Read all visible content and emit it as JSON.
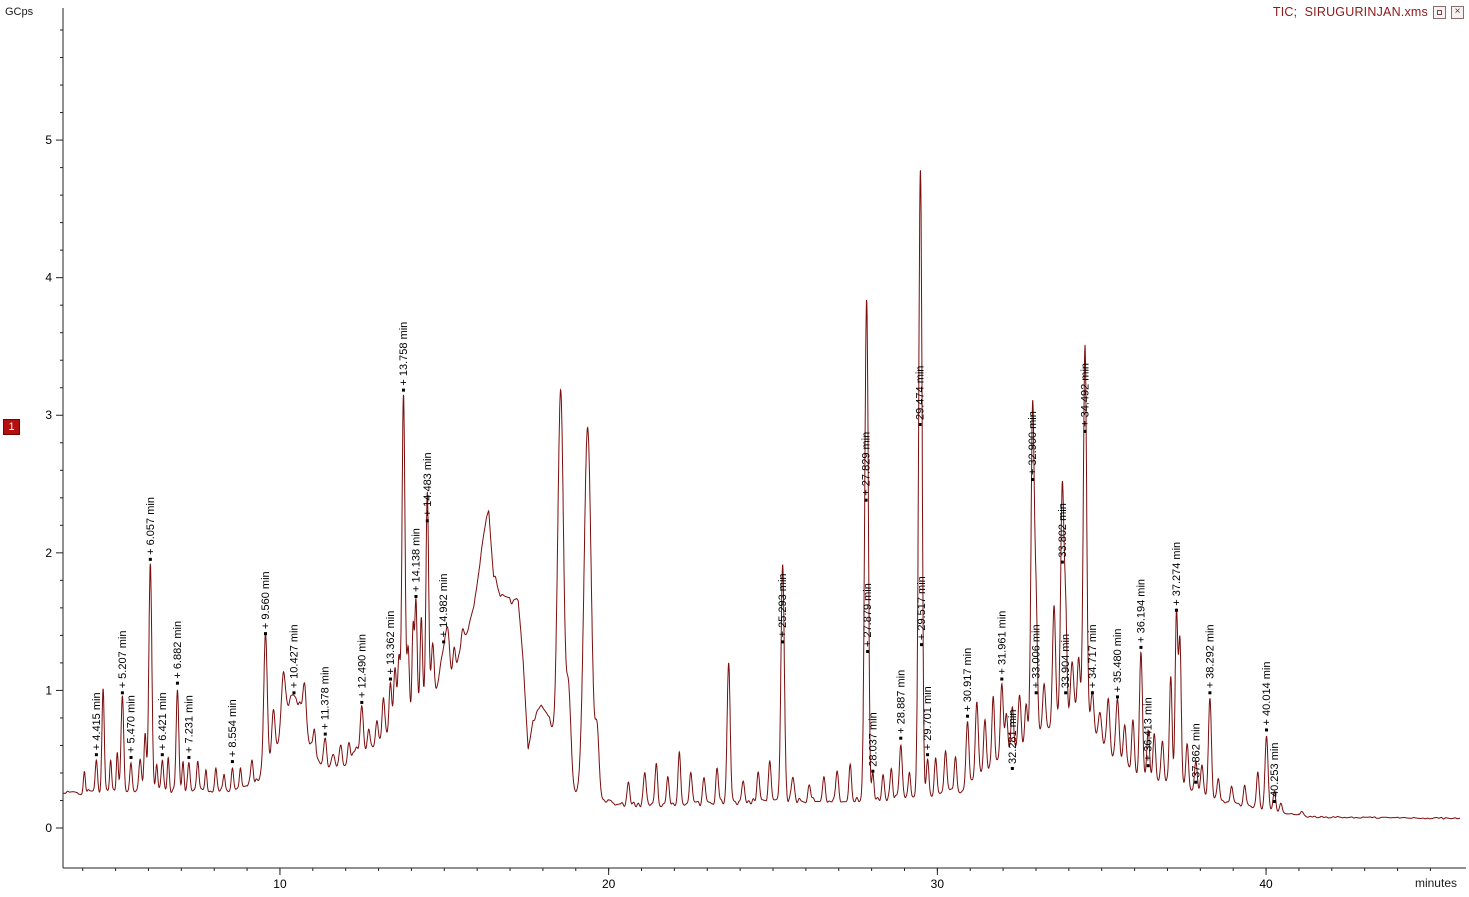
{
  "window": {
    "title": "TIC;  SIRUGURINJAN.xms",
    "badge": "1",
    "close_glyph": "×"
  },
  "chart_data": {
    "type": "line",
    "title": "TIC;  SIRUGURINJAN.xms",
    "xlabel": "minutes",
    "ylabel": "GCps",
    "xlim": [
      3.4,
      45.9
    ],
    "ylim": [
      0,
      5.96
    ],
    "x_major_ticks": [
      10,
      20,
      30,
      40
    ],
    "y_major_ticks": [
      0,
      1,
      2,
      3,
      4,
      5
    ],
    "grid": false,
    "line_color": "#7a0d0d",
    "labeled_peaks": [
      {
        "rt": 4.415,
        "h": 0.5,
        "s": 0.035,
        "label": "+ 4.415 min"
      },
      {
        "rt": 5.207,
        "h": 0.95,
        "s": 0.04,
        "label": "+ 5.207 min"
      },
      {
        "rt": 5.47,
        "h": 0.48,
        "s": 0.035,
        "label": "+ 5.470 min"
      },
      {
        "rt": 6.057,
        "h": 1.92,
        "s": 0.045,
        "label": "+ 6.057 min"
      },
      {
        "rt": 6.421,
        "h": 0.5,
        "s": 0.035,
        "label": "+ 6.421 min"
      },
      {
        "rt": 6.882,
        "h": 1.02,
        "s": 0.04,
        "label": "+ 6.882 min"
      },
      {
        "rt": 7.231,
        "h": 0.48,
        "s": 0.035,
        "label": "+ 7.231 min"
      },
      {
        "rt": 8.554,
        "h": 0.45,
        "s": 0.035,
        "label": "+ 8.554 min"
      },
      {
        "rt": 9.56,
        "h": 1.38,
        "s": 0.055,
        "label": "+ 9.560 min"
      },
      {
        "rt": 10.427,
        "h": 0.95,
        "s": 0.35,
        "label": "+ 10.427 min"
      },
      {
        "rt": 11.378,
        "h": 0.65,
        "s": 0.045,
        "label": "+ 11.378 min"
      },
      {
        "rt": 12.49,
        "h": 0.88,
        "s": 0.045,
        "label": "+ 12.490 min"
      },
      {
        "rt": 13.362,
        "h": 1.05,
        "s": 0.04,
        "label": "+ 13.362 min"
      },
      {
        "rt": 13.758,
        "h": 3.15,
        "s": 0.045,
        "label": "+ 13.758 min"
      },
      {
        "rt": 14.138,
        "h": 1.65,
        "s": 0.035,
        "label": "+ 14.138 min"
      },
      {
        "rt": 14.483,
        "h": 2.45,
        "s": 0.04,
        "label": "+ 14.483 min",
        "la": 2.2
      },
      {
        "rt": 14.982,
        "h": 1.32,
        "s": 0.1,
        "label": "+ 14.982 min"
      },
      {
        "rt": 25.293,
        "h": 1.9,
        "s": 0.05,
        "label": "+ 25.293 min",
        "la": 1.32
      },
      {
        "rt": 27.829,
        "h": 3.0,
        "s": 0.05,
        "label": "+ 27.829 min",
        "la": 2.35
      },
      {
        "rt": 27.879,
        "h": 1.6,
        "s": 0.04,
        "label": "+ 27.879 min",
        "la": 1.25
      },
      {
        "rt": 28.037,
        "h": 0.38,
        "s": 0.035,
        "label": "28.037 min"
      },
      {
        "rt": 28.887,
        "h": 0.62,
        "s": 0.04,
        "label": "+ 28.887 min"
      },
      {
        "rt": 29.474,
        "h": 4.1,
        "s": 0.05,
        "label": "29.474 min",
        "la": 2.9
      },
      {
        "rt": 29.517,
        "h": 1.3,
        "s": 0.04,
        "label": "+ 29.517 min"
      },
      {
        "rt": 29.701,
        "h": 0.5,
        "s": 0.04,
        "label": "+ 29.701 min"
      },
      {
        "rt": 30.917,
        "h": 0.78,
        "s": 0.045,
        "label": "+ 30.917 min"
      },
      {
        "rt": 31.961,
        "h": 1.05,
        "s": 0.045,
        "label": "+ 31.961 min"
      },
      {
        "rt": 32.281,
        "h": 0.88,
        "s": 0.04,
        "label": "32.281 min",
        "la": 0.4
      },
      {
        "rt": 32.9,
        "h": 3.1,
        "s": 0.05,
        "label": "+ 32.900 min",
        "la": 2.5
      },
      {
        "rt": 33.006,
        "h": 1.5,
        "s": 0.04,
        "label": "+ 33.006 min",
        "la": 0.95
      },
      {
        "rt": 33.802,
        "h": 2.5,
        "s": 0.05,
        "label": "33.802 min",
        "la": 1.9
      },
      {
        "rt": 33.904,
        "h": 1.5,
        "s": 0.04,
        "label": "33.904 min",
        "la": 0.95
      },
      {
        "rt": 34.492,
        "h": 3.5,
        "s": 0.05,
        "label": "+ 34.492 min",
        "la": 2.85
      },
      {
        "rt": 34.717,
        "h": 0.98,
        "s": 0.045,
        "label": "+ 34.717 min",
        "la": 0.95
      },
      {
        "rt": 35.48,
        "h": 0.92,
        "s": 0.05,
        "label": "+ 35.480 min"
      },
      {
        "rt": 36.194,
        "h": 1.28,
        "s": 0.045,
        "label": "+ 36.194 min"
      },
      {
        "rt": 36.413,
        "h": 0.72,
        "s": 0.04,
        "label": "+ 36.413 min",
        "la": 0.42
      },
      {
        "rt": 37.274,
        "h": 1.55,
        "s": 0.04,
        "label": "+ 37.274 min"
      },
      {
        "rt": 37.862,
        "h": 0.48,
        "s": 0.04,
        "label": "37.862 min",
        "la": 0.3
      },
      {
        "rt": 38.292,
        "h": 0.95,
        "s": 0.045,
        "label": "+ 38.292 min"
      },
      {
        "rt": 40.014,
        "h": 0.68,
        "s": 0.045,
        "label": "+ 40.014 min"
      },
      {
        "rt": 40.253,
        "h": 0.26,
        "s": 0.04,
        "label": "40.253 min",
        "la": 0.16
      }
    ],
    "unlabeled_features": [
      [
        4.05,
        0.42,
        0.03
      ],
      [
        4.62,
        1.0,
        0.035
      ],
      [
        4.85,
        0.5,
        0.03
      ],
      [
        5.05,
        0.55,
        0.03
      ],
      [
        5.75,
        0.5,
        0.04
      ],
      [
        5.9,
        0.7,
        0.035
      ],
      [
        6.25,
        0.45,
        0.03
      ],
      [
        6.6,
        0.5,
        0.03
      ],
      [
        7.05,
        0.5,
        0.03
      ],
      [
        7.5,
        0.48,
        0.035
      ],
      [
        7.75,
        0.42,
        0.03
      ],
      [
        8.05,
        0.42,
        0.03
      ],
      [
        8.3,
        0.4,
        0.03
      ],
      [
        8.8,
        0.42,
        0.03
      ],
      [
        9.15,
        0.5,
        0.04
      ],
      [
        9.8,
        0.75,
        0.05
      ],
      [
        10.1,
        0.8,
        0.06
      ],
      [
        10.75,
        0.7,
        0.05
      ],
      [
        11.05,
        0.6,
        0.04
      ],
      [
        11.6,
        0.55,
        0.04
      ],
      [
        11.85,
        0.6,
        0.04
      ],
      [
        12.1,
        0.62,
        0.04
      ],
      [
        12.3,
        0.6,
        0.04
      ],
      [
        12.7,
        0.72,
        0.04
      ],
      [
        12.95,
        0.8,
        0.04
      ],
      [
        13.15,
        0.92,
        0.04
      ],
      [
        13.5,
        1.15,
        0.04
      ],
      [
        13.62,
        1.25,
        0.035
      ],
      [
        13.9,
        1.3,
        0.035
      ],
      [
        14.05,
        1.45,
        0.03
      ],
      [
        14.3,
        1.55,
        0.035
      ],
      [
        14.65,
        1.35,
        0.04
      ],
      [
        15.1,
        1.35,
        0.045
      ],
      [
        15.3,
        1.3,
        0.04
      ],
      [
        15.55,
        1.45,
        0.05
      ],
      [
        18.54,
        3.18,
        0.09
      ],
      [
        18.78,
        1.0,
        0.07
      ],
      [
        19.36,
        2.9,
        0.11
      ],
      [
        19.65,
        0.7,
        0.06
      ],
      [
        20.6,
        0.32,
        0.04
      ],
      [
        21.1,
        0.4,
        0.04
      ],
      [
        21.45,
        0.45,
        0.04
      ],
      [
        21.8,
        0.38,
        0.04
      ],
      [
        22.15,
        0.55,
        0.04
      ],
      [
        22.5,
        0.42,
        0.04
      ],
      [
        22.9,
        0.35,
        0.04
      ],
      [
        23.3,
        0.42,
        0.04
      ],
      [
        23.65,
        1.2,
        0.045
      ],
      [
        24.1,
        0.35,
        0.04
      ],
      [
        24.55,
        0.4,
        0.04
      ],
      [
        24.9,
        0.5,
        0.04
      ],
      [
        25.6,
        0.38,
        0.04
      ],
      [
        26.1,
        0.32,
        0.04
      ],
      [
        26.55,
        0.38,
        0.04
      ],
      [
        26.95,
        0.4,
        0.04
      ],
      [
        27.35,
        0.45,
        0.04
      ],
      [
        28.35,
        0.38,
        0.035
      ],
      [
        28.6,
        0.45,
        0.035
      ],
      [
        29.15,
        0.4,
        0.035
      ],
      [
        29.95,
        0.5,
        0.04
      ],
      [
        30.25,
        0.55,
        0.04
      ],
      [
        30.55,
        0.5,
        0.04
      ],
      [
        31.2,
        0.9,
        0.045
      ],
      [
        31.45,
        0.8,
        0.04
      ],
      [
        31.7,
        0.95,
        0.04
      ],
      [
        32.1,
        0.85,
        0.04
      ],
      [
        32.5,
        0.95,
        0.045
      ],
      [
        32.7,
        0.9,
        0.04
      ],
      [
        33.25,
        1.05,
        0.045
      ],
      [
        33.55,
        1.6,
        0.045
      ],
      [
        34.1,
        1.2,
        0.05
      ],
      [
        34.3,
        1.25,
        0.045
      ],
      [
        34.95,
        0.85,
        0.05
      ],
      [
        35.2,
        0.95,
        0.045
      ],
      [
        35.7,
        0.75,
        0.045
      ],
      [
        35.95,
        0.8,
        0.04
      ],
      [
        36.6,
        0.7,
        0.04
      ],
      [
        36.85,
        0.65,
        0.04
      ],
      [
        37.1,
        1.1,
        0.04
      ],
      [
        37.38,
        1.35,
        0.04
      ],
      [
        37.6,
        0.6,
        0.04
      ],
      [
        38.05,
        0.45,
        0.04
      ],
      [
        38.55,
        0.35,
        0.04
      ],
      [
        38.95,
        0.3,
        0.04
      ],
      [
        39.35,
        0.32,
        0.04
      ],
      [
        39.75,
        0.4,
        0.04
      ],
      [
        40.45,
        0.18,
        0.04
      ],
      [
        41.1,
        0.12,
        0.05
      ]
    ],
    "baseline_profile": [
      [
        3.4,
        0.25
      ],
      [
        4.0,
        0.26
      ],
      [
        5.5,
        0.27
      ],
      [
        7.0,
        0.27
      ],
      [
        8.6,
        0.28
      ],
      [
        9.2,
        0.33
      ],
      [
        9.7,
        0.38
      ],
      [
        10.0,
        0.42
      ],
      [
        11.3,
        0.42
      ],
      [
        12.0,
        0.48
      ],
      [
        12.6,
        0.55
      ],
      [
        13.2,
        0.68
      ],
      [
        13.8,
        0.82
      ],
      [
        14.4,
        0.95
      ],
      [
        15.0,
        1.05
      ],
      [
        15.5,
        1.25
      ],
      [
        15.9,
        1.6
      ],
      [
        16.15,
        2.05
      ],
      [
        16.35,
        2.32
      ],
      [
        16.5,
        1.85
      ],
      [
        16.7,
        1.68
      ],
      [
        17.0,
        1.65
      ],
      [
        17.25,
        1.68
      ],
      [
        17.4,
        1.2
      ],
      [
        17.55,
        0.55
      ],
      [
        17.7,
        0.78
      ],
      [
        17.95,
        0.9
      ],
      [
        18.2,
        0.82
      ],
      [
        18.4,
        0.5
      ],
      [
        18.5,
        0.28
      ],
      [
        19.9,
        0.2
      ],
      [
        20.5,
        0.17
      ],
      [
        23.0,
        0.18
      ],
      [
        25.0,
        0.2
      ],
      [
        27.5,
        0.2
      ],
      [
        28.5,
        0.22
      ],
      [
        30.0,
        0.24
      ],
      [
        30.8,
        0.28
      ],
      [
        31.4,
        0.4
      ],
      [
        32.0,
        0.5
      ],
      [
        32.6,
        0.6
      ],
      [
        33.2,
        0.7
      ],
      [
        33.8,
        0.8
      ],
      [
        34.4,
        0.8
      ],
      [
        34.9,
        0.65
      ],
      [
        35.4,
        0.5
      ],
      [
        36.0,
        0.4
      ],
      [
        36.8,
        0.35
      ],
      [
        37.6,
        0.28
      ],
      [
        38.3,
        0.22
      ],
      [
        39.0,
        0.18
      ],
      [
        39.8,
        0.14
      ],
      [
        40.6,
        0.1
      ],
      [
        41.2,
        0.08
      ],
      [
        46.0,
        0.07
      ]
    ]
  }
}
